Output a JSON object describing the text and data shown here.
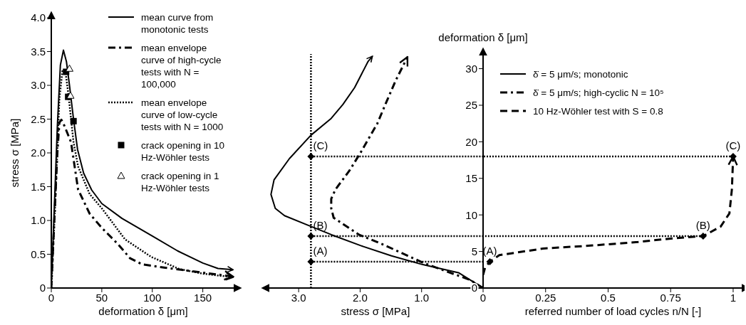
{
  "chart_data": [
    {
      "type": "line",
      "xlabel": "deformation δ [μm]",
      "ylabel": "stress σ [MPa]",
      "xlim": [
        0,
        182
      ],
      "ylim": [
        0,
        4
      ],
      "xticks": [
        0,
        50,
        100,
        150
      ],
      "yticks": [
        0,
        0.5,
        {
          "value": 1,
          "label": "1.0"
        },
        1.5,
        {
          "value": 2,
          "label": "2.0"
        },
        2.5,
        {
          "value": 3,
          "label": "3.0"
        },
        3.5,
        {
          "value": 4,
          "label": "4.0"
        }
      ],
      "legend": "top right",
      "series": [
        {
          "name": "mean curve from monotonic tests",
          "type": "line",
          "line_style": "solid",
          "color": "#000000",
          "x": [
            0,
            3,
            6,
            9,
            12,
            15,
            18,
            22,
            26,
            32,
            40,
            50,
            70,
            100,
            125,
            150,
            165,
            180
          ],
          "values": [
            0,
            1.2,
            2.4,
            3.3,
            3.52,
            3.35,
            3.0,
            2.5,
            2.05,
            1.7,
            1.45,
            1.25,
            1.03,
            0.77,
            0.55,
            0.37,
            0.29,
            0.27
          ]
        },
        {
          "name": "mean envelope curve of high-cycle tests with N = 100,000",
          "type": "line",
          "line_style": "dashdot",
          "color": "#000000",
          "x": [
            0,
            3,
            6,
            8,
            10,
            13,
            19.5,
            26.5,
            38,
            50,
            66,
            78,
            90,
            113,
            149,
            180
          ],
          "values": [
            0,
            1.0,
            2.0,
            2.45,
            2.49,
            2.4,
            2.16,
            1.46,
            1.1,
            0.89,
            0.65,
            0.44,
            0.35,
            0.3,
            0.23,
            0.17
          ]
        },
        {
          "name": "mean envelope curve of low-cycle tests with N = 1000",
          "type": "line",
          "line_style": "dotted",
          "color": "#000000",
          "x": [
            0,
            4,
            8,
            11,
            14,
            17,
            22,
            26.5,
            38,
            50,
            73,
            99,
            127,
            151,
            180
          ],
          "values": [
            0,
            1.3,
            2.8,
            3.21,
            3.2,
            2.86,
            2.16,
            1.8,
            1.39,
            1.18,
            0.72,
            0.46,
            0.28,
            0.21,
            0.16
          ]
        },
        {
          "name": "crack opening in 10 Hz-Wöhler tests",
          "type": "scatter",
          "marker": "square",
          "color": "#000000",
          "x": [
            14.6,
            16.7,
            22
          ],
          "values": [
            3.2,
            2.83,
            2.47
          ]
        },
        {
          "name": "crack opening in 1 Hz-Wöhler tests",
          "type": "scatter",
          "marker": "triangle",
          "color": "#000000",
          "x": [
            18,
            19
          ],
          "values": [
            3.25,
            2.85
          ]
        }
      ]
    },
    {
      "type": "line",
      "xlabel": "stress σ [MPa]",
      "xlim": [
        3.5,
        0
      ],
      "ylim": [
        0,
        32
      ],
      "xticks": [
        {
          "value": 3,
          "label": "3.0"
        },
        {
          "value": 2,
          "label": "2.0"
        },
        {
          "value": 1,
          "label": "1.0"
        }
      ],
      "tick_labels": "x",
      "legend": "right",
      "series": [
        {
          "name": "δ̇ = 5 μm/s; monotonic",
          "type": "line",
          "line_style": "solid",
          "color": "#000000",
          "x": [
            0,
            0.4,
            0.98,
            1.49,
            1.99,
            2.47,
            2.85,
            3.23,
            3.38,
            3.45,
            3.4,
            3.15,
            2.8,
            2.47,
            2.28,
            2.09,
            1.87,
            1.8
          ],
          "values": [
            0,
            2.1,
            3.2,
            4.4,
            5.8,
            7.3,
            8.6,
            9.9,
            10.9,
            12.8,
            14.8,
            17.7,
            20.9,
            23.2,
            25.1,
            27.4,
            31.0,
            31.7
          ]
        },
        {
          "name": "δ̇ = 5 μm/s; high-cyclic N = 10⁵",
          "type": "line",
          "line_style": "dashdot",
          "color": "#000000",
          "x": [
            0,
            0.21,
            0.96,
            1.64,
            2.02,
            2.43,
            2.47,
            2.47,
            2.4,
            2.17,
            1.98,
            1.72,
            1.57,
            1.42,
            1.23
          ],
          "values": [
            0,
            1.1,
            3.4,
            6.0,
            7.3,
            9.6,
            10.9,
            12.2,
            13.5,
            16.1,
            18.7,
            22.5,
            25.5,
            28.4,
            31.6
          ]
        },
        {
          "type": "scatter",
          "marker": "diamond",
          "color": "#000000",
          "x": [
            2.8,
            2.8,
            2.8
          ],
          "values": [
            3.6,
            7.1,
            18
          ]
        }
      ],
      "ref_lines": [
        {
          "axis": "x",
          "value": 2.8,
          "line_style": "dotted"
        },
        {
          "axis": "y",
          "value": 3.6,
          "line_style": "dotted"
        },
        {
          "axis": "y",
          "value": 7.1,
          "line_style": "dotted"
        },
        {
          "axis": "y",
          "value": 18,
          "line_style": "dotted"
        }
      ],
      "annotations": [
        {
          "text": "(A)",
          "x": 2.8,
          "y": 3.6
        },
        {
          "text": "(B)",
          "x": 2.8,
          "y": 7.1
        },
        {
          "text": "(C)",
          "x": 2.8,
          "y": 18
        }
      ]
    },
    {
      "type": "line",
      "xlabel": "referred number of load cycles n/N [-]",
      "ylabel": "deformation δ [μm]",
      "xlim": [
        0,
        1.04
      ],
      "ylim": [
        0,
        32
      ],
      "xticks": [
        0,
        0.25,
        0.5,
        0.75,
        1
      ],
      "yticks": [
        0,
        5,
        10,
        15,
        20,
        25,
        30
      ],
      "legend": "top",
      "series": [
        {
          "name": "10 Hz-Wöhler test with S = 0.8",
          "type": "line",
          "line_style": "dashed",
          "color": "#000000",
          "x": [
            0,
            0.008,
            0.027,
            0.065,
            0.24,
            0.43,
            0.62,
            0.76,
            0.88,
            0.95,
            0.985,
            0.995,
            1
          ],
          "values": [
            1.8,
            2.8,
            3.6,
            4.5,
            5.4,
            5.8,
            6.3,
            6.8,
            7.1,
            8.4,
            10.2,
            13.5,
            18
          ]
        },
        {
          "type": "scatter",
          "marker": "diamond",
          "color": "#000000",
          "x": [
            0.027,
            0.88,
            1
          ],
          "values": [
            3.6,
            7.1,
            18
          ]
        }
      ],
      "ref_lines": [
        {
          "axis": "y",
          "value": 7.1,
          "line_style": "dotted"
        },
        {
          "axis": "y",
          "value": 18,
          "line_style": "dotted"
        }
      ],
      "annotations": [
        {
          "text": "(A)",
          "x": 0.027,
          "y": 3.6
        },
        {
          "text": "(B)",
          "x": 0.88,
          "y": 7.1
        },
        {
          "text": "(C)",
          "x": 1,
          "y": 18
        }
      ]
    }
  ]
}
